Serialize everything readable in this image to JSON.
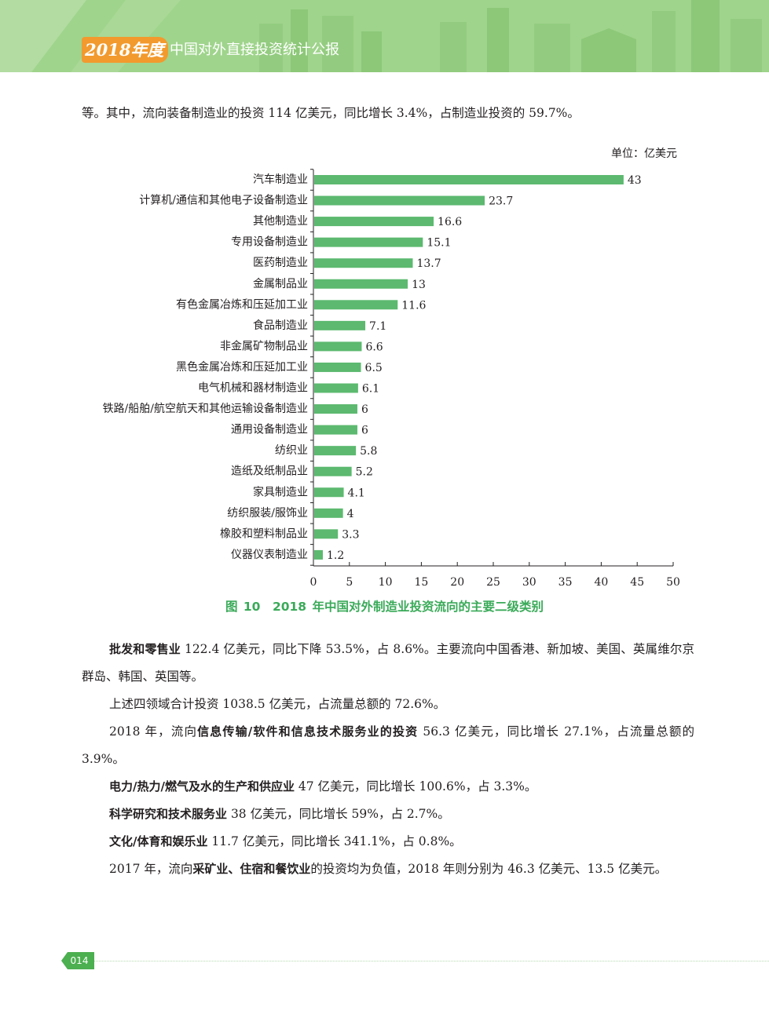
{
  "header": {
    "year_badge": "2018年度",
    "report_title": "中国对外直接投资统计公报"
  },
  "paragraphs": {
    "p1": "等。其中，流向装备制造业的投资 114 亿美元，同比增长 3.4%，占制造业投资的 59.7%。",
    "p2_bold": "批发和零售业",
    "p2_text": " 122.4 亿美元，同比下降 53.5%，占 8.6%。主要流向中国香港、新加坡、美国、英属维尔京群岛、韩国、英国等。",
    "p3": "上述四领域合计投资 1038.5 亿美元，占流量总额的 72.6%。",
    "p4_a": "2018 年，流向",
    "p4_bold": "信息传输/软件和信息技术服务业的投资",
    "p4_b": " 56.3 亿美元，同比增长 27.1%，占流量总额的 3.9%。",
    "p5_bold": "电力/热力/燃气及水的生产和供应业",
    "p5_text": " 47 亿美元，同比增长 100.6%，占 3.3%。",
    "p6_bold": "科学研究和技术服务业",
    "p6_text": " 38 亿美元，同比增长 59%，占 2.7%。",
    "p7_bold": "文化/体育和娱乐业",
    "p7_text": " 11.7 亿美元，同比增长 341.1%，占 0.8%。",
    "p8_a": "2017 年，流向",
    "p8_bold": "采矿业、住宿和餐饮业",
    "p8_b": "的投资均为负值，2018 年则分别为 46.3 亿美元、13.5 亿美元。"
  },
  "figure": {
    "caption": "图 10　2018 年中国对外制造业投资流向的主要二级类别"
  },
  "chart_data": {
    "type": "bar",
    "orientation": "horizontal",
    "unit_label": "单位：亿美元",
    "categories": [
      "汽车制造业",
      "计算机/通信和其他电子设备制造业",
      "其他制造业",
      "专用设备制造业",
      "医药制造业",
      "金属制品业",
      "有色金属冶炼和压延加工业",
      "食品制造业",
      "非金属矿物制品业",
      "黑色金属冶炼和压延加工业",
      "电气机械和器材制造业",
      "铁路/船舶/航空航天和其他运输设备制造业",
      "通用设备制造业",
      "纺织业",
      "造纸及纸制品业",
      "家具制造业",
      "纺织服装/服饰业",
      "橡胶和塑料制品业",
      "仪器仪表制造业"
    ],
    "values": [
      43,
      23.7,
      16.6,
      15.1,
      13.7,
      13,
      11.6,
      7.1,
      6.6,
      6.5,
      6.1,
      6,
      6,
      5.8,
      5.2,
      4.1,
      4,
      3.3,
      1.2
    ],
    "value_labels": [
      "43",
      "23.7",
      "16.6",
      "15.1",
      "13.7",
      "13",
      "11.6",
      "7.1",
      "6.6",
      "6.5",
      "6.1",
      "6",
      "6",
      "5.8",
      "5.2",
      "4.1",
      "4",
      "3.3",
      "1.2"
    ],
    "xlim": [
      0,
      50
    ],
    "xticks": [
      "0",
      "5",
      "10",
      "15",
      "20",
      "25",
      "30",
      "35",
      "40",
      "45",
      "50"
    ],
    "bar_color": "#5cb96f",
    "grid": false
  },
  "footer": {
    "page_number": "014"
  },
  "colors": {
    "header_green": "#9fd48c",
    "badge_orange": "#f29a2e",
    "caption_green": "#3aaa59"
  }
}
